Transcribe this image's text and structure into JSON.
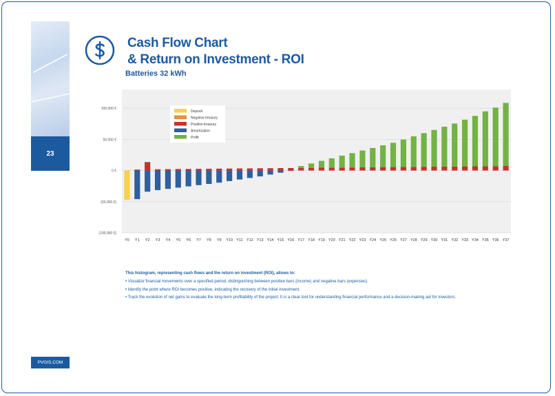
{
  "page": {
    "number": "23",
    "title_line1": "Cash Flow Chart",
    "title_line2": "& Return on Investment - ROI",
    "subtitle": "Batteries 32 kWh",
    "footer": "PVGIS.COM",
    "description": {
      "intro": "This histogram, representing cash flows and the return on investment (ROI), allows to:",
      "bullets": [
        "• Visualize financial movements over a specified period, distinguishing between positive bars (income) and negative bars (expenses).",
        "• Identify the point where ROI becomes positive, indicating the recovery of the initial investment.",
        "• Track the evolution of net gains to evaluate the long-term profitability of the project. It is a clear tool for understanding financial performance and a decision-making aid for investors."
      ]
    }
  },
  "colors": {
    "brand": "#1c5aa0",
    "deposit": "#f7d14a",
    "negative_treasury": "#e8903a",
    "positive_treasury": "#c9302c",
    "amortization": "#2e5f9e",
    "profit": "#72b343"
  },
  "chart_data": {
    "type": "bar",
    "title": "",
    "xlabel": "",
    "ylabel": "",
    "ylim": [
      -100000,
      130000
    ],
    "y_ticks": [
      100000,
      50000,
      0,
      -50000,
      -100000
    ],
    "y_tick_labels": [
      "100,000 €",
      "50,000 €",
      "0 €",
      "(50,000 €)",
      "(100,000 €)"
    ],
    "categories": [
      "Y0",
      "Y1",
      "Y2",
      "Y3",
      "Y4",
      "Y5",
      "Y6",
      "Y7",
      "Y8",
      "Y9",
      "Y10",
      "Y11",
      "Y12",
      "Y13",
      "Y14",
      "Y15",
      "Y16",
      "Y17",
      "Y18",
      "Y19",
      "Y20",
      "Y21",
      "Y22",
      "Y23",
      "Y24",
      "Y25",
      "Y26",
      "Y27",
      "Y28",
      "Y29",
      "Y30",
      "Y31",
      "Y32",
      "Y33",
      "Y34",
      "Y35",
      "Y36",
      "Y37"
    ],
    "legend": [
      "Deposit",
      "Negative treasury",
      "Positive treasury",
      "Amortization",
      "Profit"
    ],
    "legend_position": "top-left",
    "series": [
      {
        "name": "Deposit",
        "values": [
          -47000,
          0,
          0,
          0,
          0,
          0,
          0,
          0,
          0,
          0,
          0,
          0,
          0,
          0,
          0,
          0,
          0,
          0,
          0,
          0,
          0,
          0,
          0,
          0,
          0,
          0,
          0,
          0,
          0,
          0,
          0,
          0,
          0,
          0,
          0,
          0,
          0,
          0
        ]
      },
      {
        "name": "Positive treasury",
        "values": [
          0,
          1500,
          13500,
          2000,
          2200,
          2400,
          2500,
          2700,
          2800,
          3000,
          3100,
          3300,
          3400,
          3600,
          3700,
          3900,
          4000,
          4200,
          4300,
          4500,
          4600,
          4800,
          4900,
          5100,
          5200,
          5400,
          5500,
          5700,
          5800,
          6000,
          6100,
          6300,
          6400,
          6600,
          6700,
          6900,
          7000,
          7500
        ]
      },
      {
        "name": "Amortization",
        "values": [
          0,
          -46000,
          -34000,
          -31500,
          -29500,
          -27500,
          -25500,
          -23500,
          -21500,
          -19500,
          -17000,
          -14500,
          -12000,
          -9500,
          -6500,
          -3500,
          -500,
          0,
          0,
          0,
          0,
          0,
          0,
          0,
          0,
          0,
          0,
          0,
          0,
          0,
          0,
          0,
          0,
          0,
          0,
          0,
          0,
          0
        ]
      },
      {
        "name": "Profit",
        "values": [
          0,
          0,
          0,
          0,
          0,
          0,
          0,
          0,
          0,
          0,
          0,
          0,
          0,
          0,
          0,
          0,
          0,
          3000,
          7000,
          11000,
          15000,
          19000,
          23000,
          27000,
          31000,
          35000,
          39000,
          44000,
          49000,
          54000,
          59000,
          64000,
          69000,
          75000,
          81000,
          88000,
          94000,
          101000
        ]
      }
    ]
  }
}
